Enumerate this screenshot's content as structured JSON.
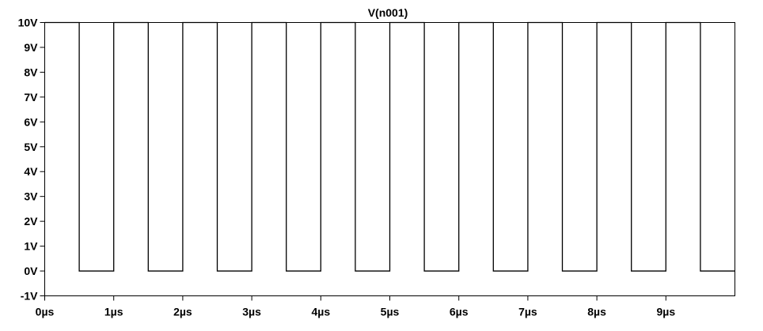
{
  "chart_data": {
    "type": "line",
    "title": "V(n001)",
    "xlabel": "",
    "ylabel": "",
    "xlim": [
      0,
      10
    ],
    "ylim": [
      -1,
      10
    ],
    "x_unit": "µs",
    "y_unit": "V",
    "grid": false,
    "x_ticks": [
      0,
      1,
      2,
      3,
      4,
      5,
      6,
      7,
      8,
      9
    ],
    "x_tick_labels": [
      "0µs",
      "1µs",
      "2µs",
      "3µs",
      "4µs",
      "5µs",
      "6µs",
      "7µs",
      "8µs",
      "9µs"
    ],
    "y_ticks": [
      10,
      9,
      8,
      7,
      6,
      5,
      4,
      3,
      2,
      1,
      0,
      -1
    ],
    "y_tick_labels": [
      "10V",
      "9V",
      "8V",
      "7V",
      "6V",
      "5V",
      "4V",
      "3V",
      "2V",
      "1V",
      "0V",
      "-1V"
    ],
    "series": [
      {
        "color": "#000000",
        "x": [
          0,
          0.5,
          0.5,
          1.0,
          1.0,
          1.5,
          1.5,
          2.0,
          2.0,
          2.5,
          2.5,
          3.0,
          3.0,
          3.5,
          3.5,
          4.0,
          4.0,
          4.5,
          4.5,
          5.0,
          5.0,
          5.5,
          5.5,
          6.0,
          6.0,
          6.5,
          6.5,
          7.0,
          7.0,
          7.5,
          7.5,
          8.0,
          8.0,
          8.5,
          8.5,
          9.0,
          9.0,
          9.5,
          9.5,
          10.0
        ],
        "y": [
          10,
          10,
          0,
          0,
          10,
          10,
          0,
          0,
          10,
          10,
          0,
          0,
          10,
          10,
          0,
          0,
          10,
          10,
          0,
          0,
          10,
          10,
          0,
          0,
          10,
          10,
          0,
          0,
          10,
          10,
          0,
          0,
          10,
          10,
          0,
          0,
          10,
          10,
          0,
          0
        ]
      }
    ]
  }
}
